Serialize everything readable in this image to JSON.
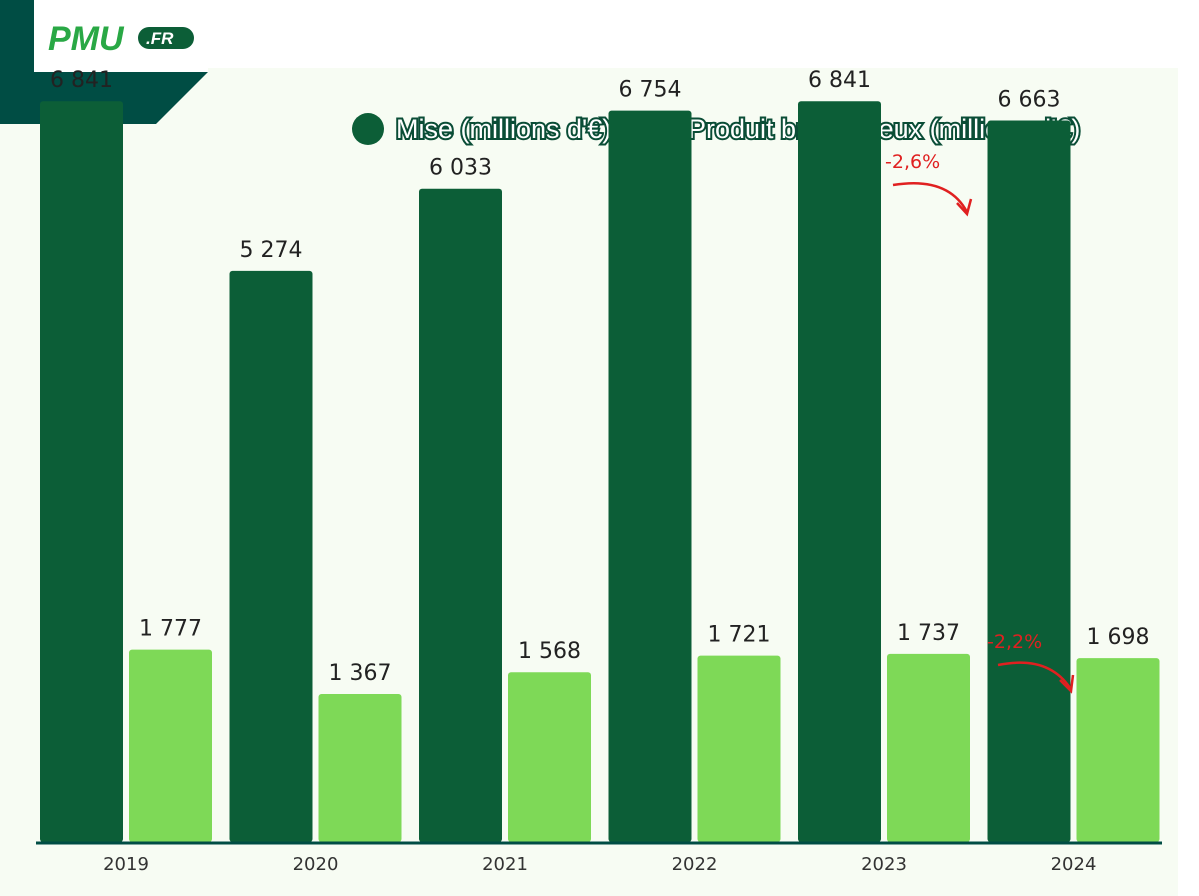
{
  "logo": {
    "brand": "PMU",
    "suffix": ".FR"
  },
  "colors": {
    "mise": "#0c5e37",
    "pbj": "#7ed957",
    "header_dark": "#004d44",
    "background": "#f7fcf3",
    "delta": "#e02020"
  },
  "legend": {
    "position": "top-right",
    "items": [
      {
        "label": "Mise (millions d'€)",
        "color": "#0c5e37"
      },
      {
        "label": "Produit brut de jeux (millions d'€)",
        "color": "#7ed957"
      }
    ]
  },
  "chart_data": {
    "type": "bar",
    "categories": [
      "2019",
      "2020",
      "2021",
      "2022",
      "2023",
      "2024"
    ],
    "series": [
      {
        "name": "Mise (millions d'€)",
        "values": [
          6841,
          5274,
          6033,
          6754,
          6841,
          6663
        ],
        "labels": [
          "6 841",
          "5 274",
          "6 033",
          "6 754",
          "6 841",
          "6 663"
        ]
      },
      {
        "name": "Produit brut de jeux (millions d'€)",
        "values": [
          1777,
          1367,
          1568,
          1721,
          1737,
          1698
        ],
        "labels": [
          "1 777",
          "1 367",
          "1 568",
          "1 721",
          "1 737",
          "1 698"
        ]
      }
    ],
    "title": "",
    "xlabel": "",
    "ylabel": "",
    "ylim": [
      0,
      7000
    ],
    "grid": false,
    "annotations": [
      {
        "text": "-2,6%",
        "series": 0,
        "from": "2023",
        "to": "2024"
      },
      {
        "text": "-2,2%",
        "series": 1,
        "from": "2023",
        "to": "2024"
      }
    ]
  }
}
